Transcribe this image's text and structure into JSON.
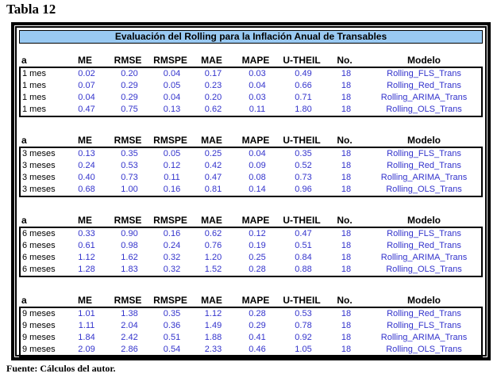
{
  "caption": "Tabla 12",
  "banner_title": "Evaluación del Rolling para la Inflación Anual de Transables",
  "source_note": "Fuente: Cálculos del autor.",
  "colors": {
    "banner_bg": "#99c9f2",
    "value_text": "#3333cc",
    "border": "#000000",
    "background": "#ffffff"
  },
  "columns": [
    "a",
    "ME",
    "RMSE",
    "RMSPE",
    "MAE",
    "MAPE",
    "U-THEIL",
    "No.",
    "Modelo"
  ],
  "blocks": [
    {
      "horizon": "1 mes",
      "rows": [
        [
          "1 mes",
          "0.02",
          "0.20",
          "0.04",
          "0.17",
          "0.03",
          "0.49",
          "18",
          "Rolling_FLS_Trans"
        ],
        [
          "1 mes",
          "0.07",
          "0.29",
          "0.05",
          "0.23",
          "0.04",
          "0.66",
          "18",
          "Rolling_Red_Trans"
        ],
        [
          "1 mes",
          "0.04",
          "0.29",
          "0.04",
          "0.20",
          "0.03",
          "0.71",
          "18",
          "Rolling_ARIMA_Trans"
        ],
        [
          "1 mes",
          "0.47",
          "0.75",
          "0.13",
          "0.62",
          "0.11",
          "1.80",
          "18",
          "Rolling_OLS_Trans"
        ]
      ]
    },
    {
      "horizon": "3 meses",
      "rows": [
        [
          "3 meses",
          "0.13",
          "0.35",
          "0.05",
          "0.25",
          "0.04",
          "0.35",
          "18",
          "Rolling_FLS_Trans"
        ],
        [
          "3 meses",
          "0.24",
          "0.53",
          "0.12",
          "0.42",
          "0.09",
          "0.52",
          "18",
          "Rolling_Red_Trans"
        ],
        [
          "3 meses",
          "0.40",
          "0.73",
          "0.11",
          "0.47",
          "0.08",
          "0.73",
          "18",
          "Rolling_ARIMA_Trans"
        ],
        [
          "3 meses",
          "0.68",
          "1.00",
          "0.16",
          "0.81",
          "0.14",
          "0.96",
          "18",
          "Rolling_OLS_Trans"
        ]
      ]
    },
    {
      "horizon": "6 meses",
      "rows": [
        [
          "6 meses",
          "0.33",
          "0.90",
          "0.16",
          "0.62",
          "0.12",
          "0.47",
          "18",
          "Rolling_FLS_Trans"
        ],
        [
          "6 meses",
          "0.61",
          "0.98",
          "0.24",
          "0.76",
          "0.19",
          "0.51",
          "18",
          "Rolling_Red_Trans"
        ],
        [
          "6 meses",
          "1.12",
          "1.62",
          "0.32",
          "1.20",
          "0.25",
          "0.84",
          "18",
          "Rolling_ARIMA_Trans"
        ],
        [
          "6 meses",
          "1.28",
          "1.83",
          "0.32",
          "1.52",
          "0.28",
          "0.88",
          "18",
          "Rolling_OLS_Trans"
        ]
      ]
    },
    {
      "horizon": "9 meses",
      "rows": [
        [
          "9 meses",
          "1.01",
          "1.38",
          "0.35",
          "1.12",
          "0.28",
          "0.53",
          "18",
          "Rolling_Red_Trans"
        ],
        [
          "9 meses",
          "1.11",
          "2.04",
          "0.36",
          "1.49",
          "0.29",
          "0.78",
          "18",
          "Rolling_FLS_Trans"
        ],
        [
          "9 meses",
          "1.84",
          "2.42",
          "0.51",
          "1.88",
          "0.41",
          "0.92",
          "18",
          "Rolling_ARIMA_Trans"
        ],
        [
          "9 meses",
          "2.09",
          "2.86",
          "0.54",
          "2.33",
          "0.46",
          "1.05",
          "18",
          "Rolling_OLS_Trans"
        ]
      ]
    }
  ]
}
